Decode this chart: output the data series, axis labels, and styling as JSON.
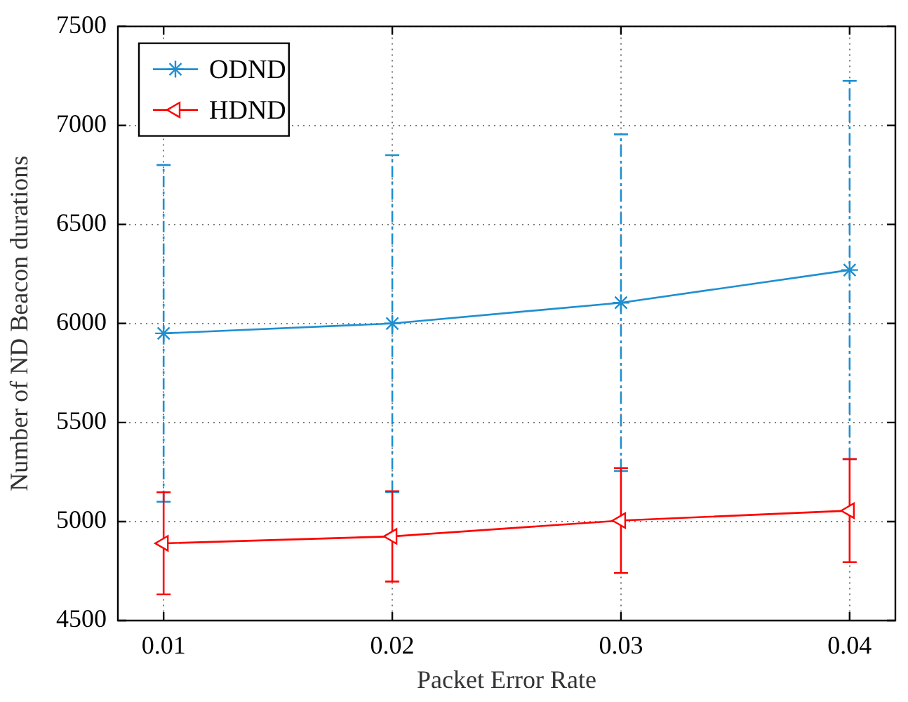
{
  "chart_data": {
    "type": "line",
    "xlabel": "Packet Error Rate",
    "ylabel": "Number of ND Beacon durations",
    "x": [
      0.01,
      0.02,
      0.03,
      0.04
    ],
    "series": [
      {
        "name": "ODND",
        "color": "#1f8fd0",
        "marker": "cross",
        "values": [
          5950,
          6000,
          6105,
          6270
        ],
        "errors": [
          850,
          850,
          850,
          955
        ]
      },
      {
        "name": "HDND",
        "color": "#ff0000",
        "marker": "triangle",
        "values": [
          4890,
          4925,
          5005,
          5055
        ],
        "errors": [
          258,
          228,
          265,
          260
        ]
      }
    ],
    "xlim": [
      0.008,
      0.042
    ],
    "xticks": [
      0.01,
      0.02,
      0.03,
      0.04
    ],
    "ylim": [
      4500,
      7500
    ],
    "yticks": [
      4500,
      5000,
      5500,
      6000,
      6500,
      7000,
      7500
    ],
    "grid": true,
    "legend": "top left",
    "line_style": "solid"
  }
}
